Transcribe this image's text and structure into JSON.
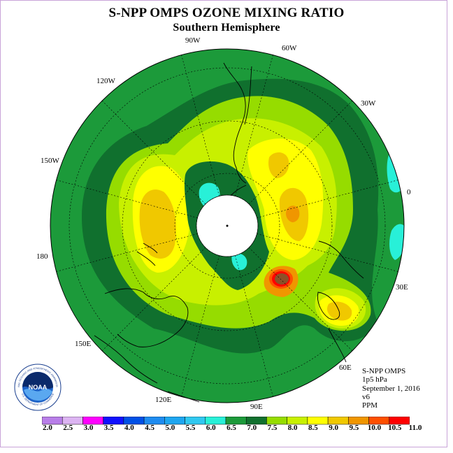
{
  "title": "S-NPP OMPS OZONE MIXING RATIO",
  "subtitle": "Southern Hemisphere",
  "longitude_labels": {
    "lon_90w": "90W",
    "lon_60w": "60W",
    "lon_30w": "30W",
    "lon_0": "0",
    "lon_30e": "30E",
    "lon_60e": "60E",
    "lon_90e": "90E",
    "lon_120e": "120E",
    "lon_150e": "150E",
    "lon_180": "180",
    "lon_150w": "150W",
    "lon_120w": "120W"
  },
  "info": {
    "instrument": "S-NPP OMPS",
    "level": "1p5 hPa",
    "date": "September 1, 2016",
    "version": "v6",
    "units": "PPM"
  },
  "logo": {
    "text": "NOAA",
    "ring_text": "NATIONAL OCEANIC AND ATMOSPHERIC ADMINISTRATION",
    "dept_text": "U.S. DEPARTMENT OF COMMERCE"
  },
  "colorbar": {
    "ticks": [
      "2.0",
      "2.5",
      "3.0",
      "3.5",
      "4.0",
      "4.5",
      "5.0",
      "5.5",
      "6.0",
      "6.5",
      "7.0",
      "7.5",
      "8.0",
      "8.5",
      "9.0",
      "9.5",
      "10.0",
      "10.5",
      "11.0"
    ],
    "colors": [
      "#b87ee8",
      "#dcb4f2",
      "#ff00ff",
      "#1010ff",
      "#0050e6",
      "#1e8cf0",
      "#1ea6f0",
      "#30c8f0",
      "#28f0d8",
      "#1c9a3a",
      "#10702e",
      "#96dc00",
      "#c8f000",
      "#ffff00",
      "#f0c800",
      "#f09600",
      "#ff5000",
      "#ff0000",
      "#8c5028"
    ]
  },
  "field_colors": {
    "level_5_5": "#28f0d8",
    "level_6_0": "#1c9a3a",
    "level_6_5": "#10702e",
    "level_7_0": "#96dc00",
    "level_7_5": "#c8f000",
    "level_8_0": "#ffff00",
    "level_8_5": "#f0c800",
    "level_9_0": "#f09600",
    "level_9_5": "#ff5000",
    "level_10_0": "#ff0000",
    "level_10_5": "#8c5028"
  }
}
